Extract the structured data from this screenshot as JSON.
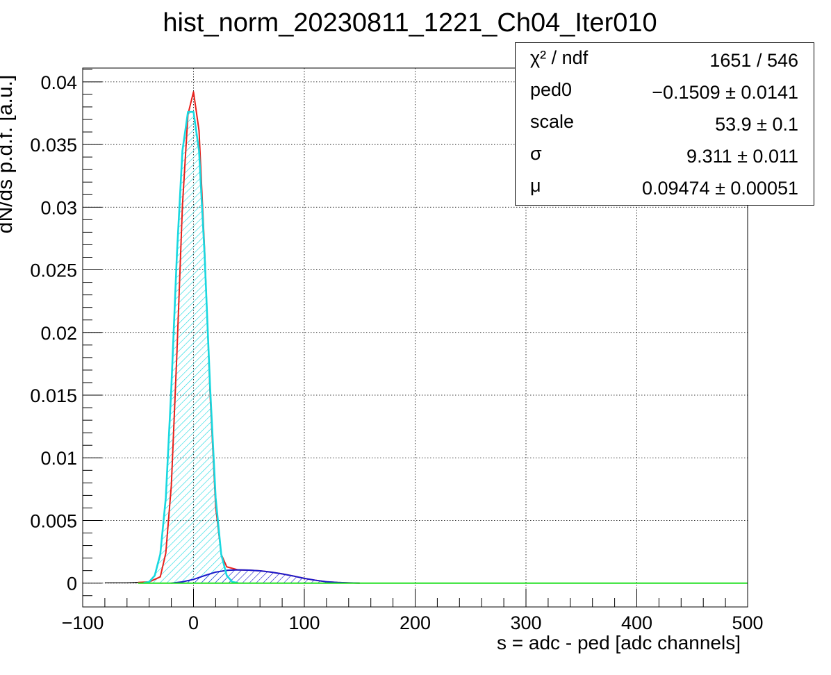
{
  "chart_data": {
    "type": "histogram",
    "title": "hist_norm_20230811_1221_Ch04_Iter010",
    "xlabel": "s = adc - ped [adc channels]",
    "ylabel": "dN/ds p.d.f. [a.u.]",
    "xlim": [
      -100,
      500
    ],
    "ylim": [
      -0.0019,
      0.0411
    ],
    "x_ticks": [
      -100,
      0,
      100,
      200,
      300,
      400,
      500
    ],
    "x_tick_labels": [
      "−100",
      "0",
      "100",
      "200",
      "300",
      "400",
      "500"
    ],
    "y_ticks": [
      0,
      0.005,
      0.01,
      0.015,
      0.02,
      0.025,
      0.03,
      0.035,
      0.04
    ],
    "y_tick_labels": [
      "0",
      "0.005",
      "0.01",
      "0.015",
      "0.02",
      "0.025",
      "0.03",
      "0.035",
      "0.04"
    ],
    "grid": true,
    "series": [
      {
        "role": "data-histogram",
        "color": "#000000",
        "x": [
          -80,
          -60,
          -50,
          -40,
          -30,
          -25,
          -20,
          -15,
          -10,
          -5,
          0,
          5,
          10,
          15,
          20,
          25,
          30,
          40,
          50,
          60,
          70,
          80,
          90,
          100,
          110,
          120,
          130,
          140,
          150
        ],
        "y": [
          3e-05,
          3e-05,
          6e-05,
          0.0001,
          0.0005,
          0.0024,
          0.0078,
          0.0183,
          0.0301,
          0.0374,
          0.0392,
          0.0361,
          0.0266,
          0.015,
          0.0061,
          0.0023,
          0.0013,
          0.00106,
          0.00104,
          0.00098,
          0.00088,
          0.00074,
          0.00057,
          0.00038,
          0.00023,
          0.00011,
          5e-05,
          2e-05,
          0.0
        ]
      },
      {
        "role": "total-fit",
        "color": "#e8201b",
        "x": [
          -50,
          -40,
          -30,
          -25,
          -20,
          -15,
          -10,
          -5,
          0,
          5,
          10,
          15,
          20,
          25,
          30,
          40,
          50,
          60,
          70,
          80,
          90,
          100,
          110,
          120,
          130,
          140,
          150
        ],
        "y": [
          5e-05,
          0.0001,
          0.0005,
          0.0024,
          0.0078,
          0.0183,
          0.0301,
          0.0374,
          0.0392,
          0.0361,
          0.0266,
          0.015,
          0.0061,
          0.0023,
          0.0013,
          0.00106,
          0.00104,
          0.00098,
          0.00088,
          0.00074,
          0.00057,
          0.00038,
          0.00023,
          0.00011,
          5e-05,
          2e-05,
          0.0
        ]
      },
      {
        "role": "pedestal-component",
        "color": "#18d8e0",
        "hatched": true,
        "x": [
          -45,
          -40,
          -35,
          -30,
          -25,
          -20,
          -15,
          -10,
          -5,
          0,
          5,
          10,
          15,
          20,
          25,
          30,
          35,
          40
        ],
        "y": [
          2e-05,
          0.0001,
          0.0006,
          0.0023,
          0.0068,
          0.0156,
          0.0262,
          0.0345,
          0.0376,
          0.0376,
          0.0345,
          0.0262,
          0.0156,
          0.0068,
          0.0023,
          0.0006,
          0.0001,
          2e-05
        ]
      },
      {
        "role": "signal-component",
        "color": "#1a1acc",
        "hatched": true,
        "x": [
          -20,
          -10,
          0,
          10,
          20,
          30,
          40,
          50,
          60,
          70,
          80,
          90,
          100,
          110,
          120,
          130,
          140,
          150
        ],
        "y": [
          0.0,
          0.0001,
          0.0003,
          0.0006,
          0.00088,
          0.00102,
          0.00106,
          0.00104,
          0.00098,
          0.00088,
          0.00074,
          0.00057,
          0.00038,
          0.00023,
          0.00011,
          5e-05,
          2e-05,
          0.0
        ]
      },
      {
        "role": "background-component",
        "color": "#22e022",
        "x": [
          -50,
          500
        ],
        "y": [
          0.0,
          0.0
        ]
      }
    ]
  },
  "stats": {
    "rows": [
      {
        "key": "χ² / ndf",
        "value": "1651 / 546"
      },
      {
        "key": "ped0",
        "value": "−0.1509 ± 0.0141"
      },
      {
        "key": "scale",
        "value": "53.9 ± 0.1"
      },
      {
        "key": "σ",
        "value": "9.311 ± 0.011"
      },
      {
        "key": "μ",
        "value": "0.09474 ± 0.00051"
      }
    ]
  }
}
